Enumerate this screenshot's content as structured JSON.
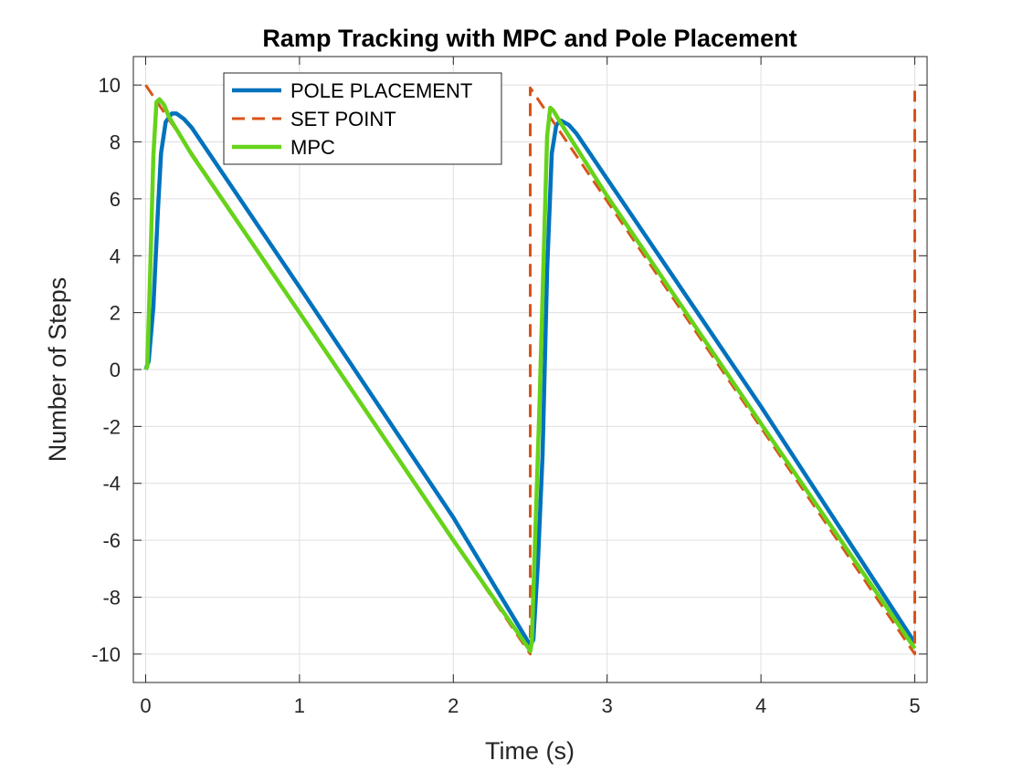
{
  "chart_data": {
    "type": "line",
    "title": "Ramp Tracking with MPC and Pole Placement",
    "xlabel": "Time (s)",
    "ylabel": "Number of Steps",
    "xlim": [
      -0.08,
      5.08
    ],
    "ylim": [
      -11,
      11
    ],
    "xticks": [
      0,
      1,
      2,
      3,
      4,
      5
    ],
    "xtick_labels": [
      "0",
      "1",
      "2",
      "3",
      "4",
      "5"
    ],
    "yticks": [
      -10,
      -8,
      -6,
      -4,
      -2,
      0,
      2,
      4,
      6,
      8,
      10
    ],
    "ytick_labels": [
      "-10",
      "-8",
      "-6",
      "-4",
      "-2",
      "0",
      "2",
      "4",
      "6",
      "8",
      "10"
    ],
    "grid": true,
    "legend_position": "top-left",
    "series": [
      {
        "name": "POLE PLACEMENT",
        "color": "#0072BD",
        "style": "solid",
        "points": [
          [
            0,
            0
          ],
          [
            0.02,
            0.3
          ],
          [
            0.05,
            2.2
          ],
          [
            0.08,
            5.6
          ],
          [
            0.1,
            7.6
          ],
          [
            0.13,
            8.7
          ],
          [
            0.17,
            9.0
          ],
          [
            0.2,
            9.0
          ],
          [
            0.25,
            8.8
          ],
          [
            0.3,
            8.5
          ],
          [
            1.0,
            2.9
          ],
          [
            2.0,
            -5.2
          ],
          [
            2.49,
            -9.6
          ],
          [
            2.5,
            -9.7
          ],
          [
            2.52,
            -9.5
          ],
          [
            2.55,
            -6.8
          ],
          [
            2.58,
            -3.0
          ],
          [
            2.61,
            3.5
          ],
          [
            2.64,
            7.6
          ],
          [
            2.67,
            8.6
          ],
          [
            2.7,
            8.75
          ],
          [
            2.75,
            8.6
          ],
          [
            2.8,
            8.3
          ],
          [
            3.0,
            6.7
          ],
          [
            4.0,
            -1.3
          ],
          [
            5.0,
            -9.6
          ]
        ]
      },
      {
        "name": "SET POINT",
        "color": "#D95319",
        "style": "dashed",
        "points": [
          [
            0,
            10
          ],
          [
            2.5,
            -10
          ],
          [
            2.5,
            9.9
          ],
          [
            5,
            -10
          ],
          [
            5,
            9.8
          ]
        ]
      },
      {
        "name": "MPC",
        "color": "#66D31A",
        "style": "solid",
        "points": [
          [
            0,
            0
          ],
          [
            0.01,
            0.1
          ],
          [
            0.03,
            3.5
          ],
          [
            0.05,
            7.5
          ],
          [
            0.07,
            9.4
          ],
          [
            0.09,
            9.5
          ],
          [
            0.12,
            9.3
          ],
          [
            0.15,
            8.9
          ],
          [
            0.3,
            7.55
          ],
          [
            1.0,
            2.0
          ],
          [
            2.0,
            -6.0
          ],
          [
            2.49,
            -9.8
          ],
          [
            2.5,
            -9.9
          ],
          [
            2.51,
            -9.6
          ],
          [
            2.53,
            -6.2
          ],
          [
            2.56,
            -1.3
          ],
          [
            2.59,
            4.5
          ],
          [
            2.61,
            8.2
          ],
          [
            2.63,
            9.2
          ],
          [
            2.65,
            9.1
          ],
          [
            2.7,
            8.65
          ],
          [
            3.0,
            6.1
          ],
          [
            4.0,
            -1.9
          ],
          [
            5.0,
            -9.8
          ]
        ]
      }
    ]
  }
}
